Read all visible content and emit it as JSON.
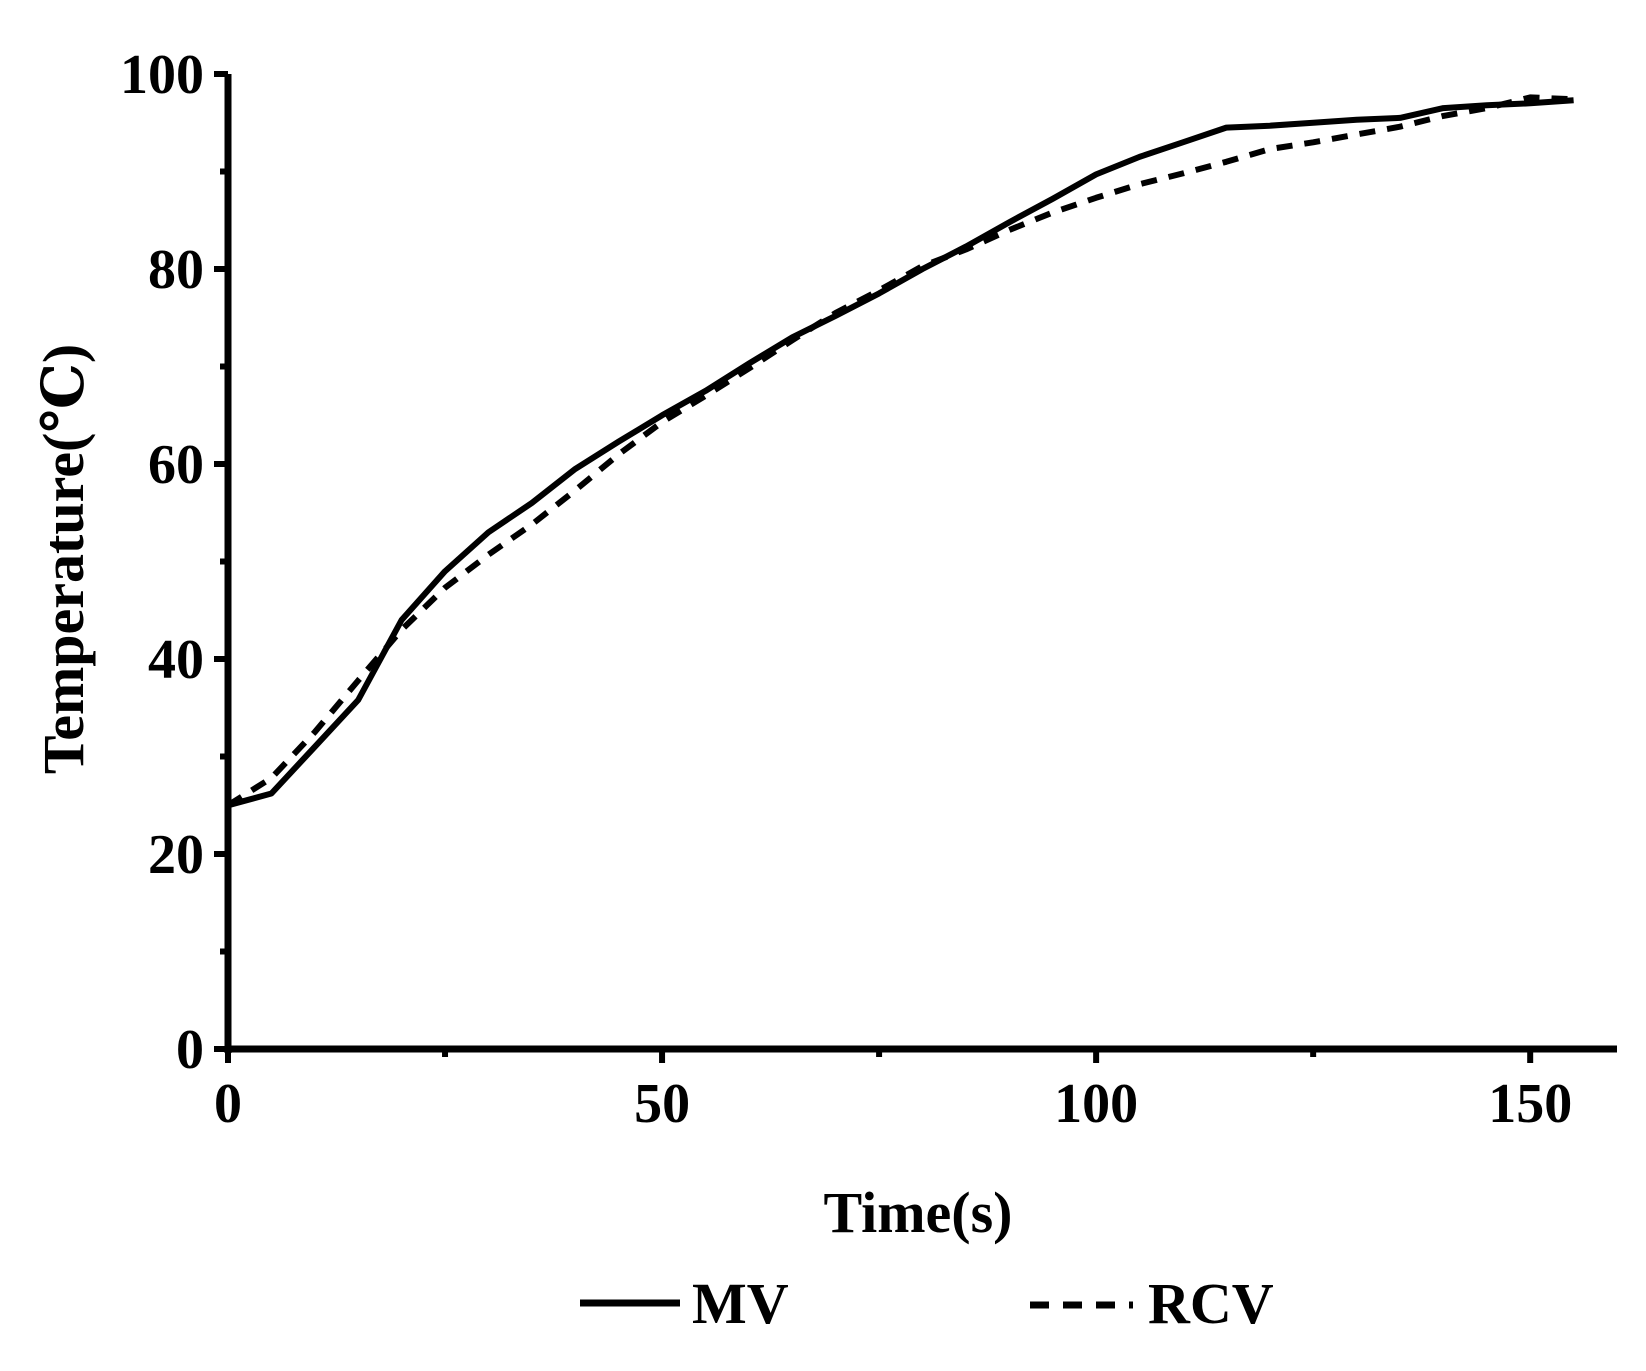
{
  "chart_data": {
    "type": "line",
    "title": "",
    "xlabel": "Time(s)",
    "ylabel": "Temperature(℃)",
    "xlim": [
      0,
      160
    ],
    "ylim": [
      0,
      100
    ],
    "x_ticks": [
      0,
      50,
      100,
      150
    ],
    "x_tick_labels": [
      "0",
      "50",
      "100",
      "150"
    ],
    "x_minor_ticks": [
      25,
      75,
      125
    ],
    "y_ticks": [
      0,
      20,
      40,
      60,
      80,
      100
    ],
    "y_tick_labels": [
      "0",
      "20",
      "40",
      "60",
      "80",
      "100"
    ],
    "y_minor_ticks": [
      10,
      30,
      50,
      70,
      90
    ],
    "grid": false,
    "legend_position": "bottom-center",
    "series": [
      {
        "name": "MV",
        "style": "solid",
        "color": "#000000",
        "x": [
          0,
          5,
          10,
          15,
          20,
          25,
          30,
          35,
          40,
          45,
          50,
          55,
          60,
          65,
          70,
          75,
          80,
          85,
          90,
          95,
          100,
          105,
          110,
          115,
          120,
          125,
          130,
          135,
          140,
          145,
          150,
          155
        ],
        "y": [
          25,
          26.2,
          31,
          35.8,
          44,
          49,
          53,
          56,
          59.5,
          62.3,
          65,
          67.5,
          70.3,
          73,
          75.2,
          77.5,
          80,
          82.3,
          84.8,
          87.2,
          89.7,
          91.5,
          93,
          94.5,
          94.7,
          95,
          95.3,
          95.5,
          96.5,
          96.8,
          97,
          97.3
        ]
      },
      {
        "name": "RCV",
        "style": "dashed",
        "color": "#000000",
        "x": [
          0,
          5,
          10,
          15,
          20,
          25,
          30,
          35,
          40,
          45,
          50,
          55,
          60,
          65,
          70,
          75,
          80,
          85,
          90,
          95,
          100,
          105,
          110,
          115,
          120,
          125,
          130,
          135,
          140,
          145,
          150,
          155
        ],
        "y": [
          25,
          27.8,
          32.5,
          37.8,
          43,
          47.3,
          50.7,
          53.8,
          57.3,
          61,
          64.3,
          67,
          69.8,
          72.7,
          75.5,
          77.8,
          80.3,
          82,
          84,
          85.8,
          87.3,
          88.7,
          89.8,
          91,
          92.3,
          93,
          93.8,
          94.6,
          95.7,
          96.5,
          97.6,
          97.4
        ]
      }
    ]
  }
}
